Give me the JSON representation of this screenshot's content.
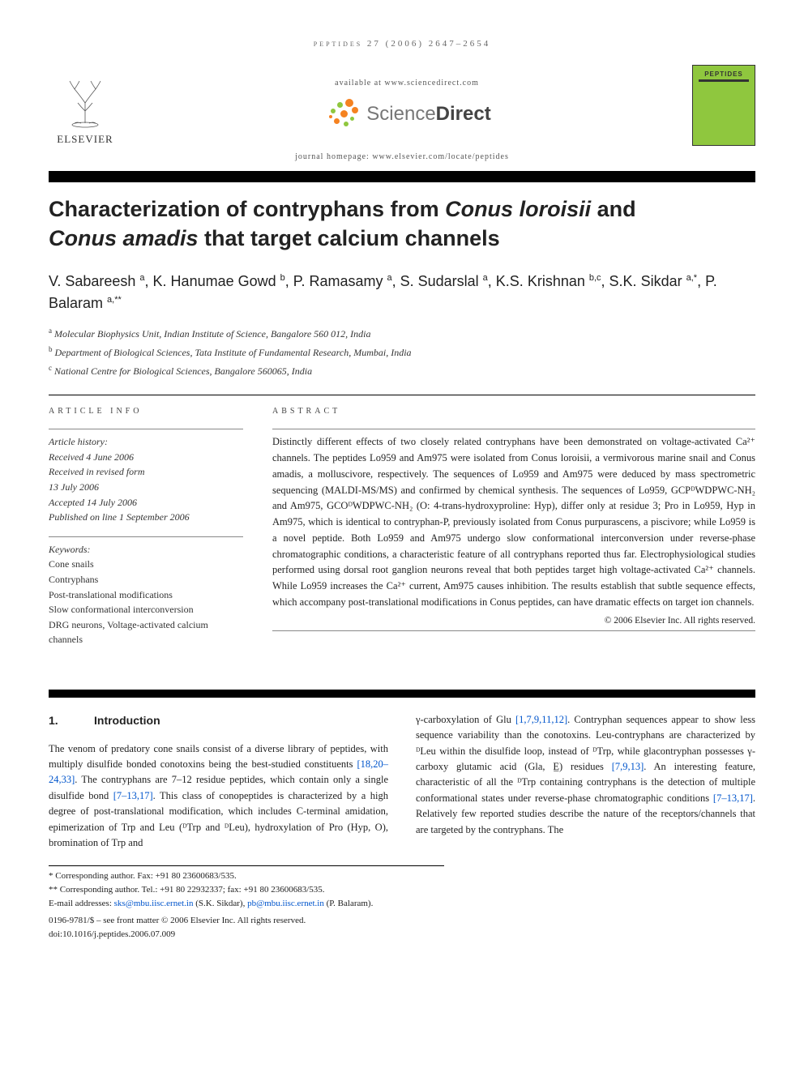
{
  "running_header": "peptides 27 (2006) 2647–2654",
  "banner": {
    "available_at": "available at www.sciencedirect.com",
    "sciencedirect": "ScienceDirect",
    "elsevier": "ELSEVIER",
    "journal_cover_name": "PEPTIDES",
    "homepage": "journal homepage: www.elsevier.com/locate/peptides"
  },
  "title_line1": "Characterization of contryphans from ",
  "title_em1": "Conus loroisii",
  "title_mid": " and ",
  "title_em2": "Conus amadis",
  "title_line2": " that target calcium channels",
  "authors_html": "V. Sabareesh <sup>a</sup>, K. Hanumae Gowd <sup>b</sup>, P. Ramasamy <sup>a</sup>, S. Sudarslal <sup>a</sup>, K.S. Krishnan <sup>b,c</sup>, S.K. Sikdar <sup>a,*</sup>, P. Balaram <sup>a,**</sup>",
  "affil": {
    "a": "Molecular Biophysics Unit, Indian Institute of Science, Bangalore 560 012, India",
    "b": "Department of Biological Sciences, Tata Institute of Fundamental Research, Mumbai, India",
    "c": "National Centre for Biological Sciences, Bangalore 560065, India"
  },
  "labels": {
    "article_info": "ARTICLE INFO",
    "abstract": "ABSTRACT",
    "history_hdr": "Article history:",
    "keywords_hdr": "Keywords:"
  },
  "history": {
    "l1": "Received 4 June 2006",
    "l2": "Received in revised form",
    "l3": "13 July 2006",
    "l4": "Accepted 14 July 2006",
    "l5": "Published on line 1 September 2006"
  },
  "keywords": [
    "Cone snails",
    "Contryphans",
    "Post-translational modifications",
    "Slow conformational interconversion",
    "DRG neurons, Voltage-activated calcium channels"
  ],
  "abstract": "Distinctly different effects of two closely related contryphans have been demonstrated on voltage-activated Ca²⁺ channels. The peptides Lo959 and Am975 were isolated from Conus loroisii, a vermivorous marine snail and Conus amadis, a molluscivore, respectively. The sequences of Lo959 and Am975 were deduced by mass spectrometric sequencing (MALDI-MS/MS) and confirmed by chemical synthesis. The sequences of Lo959, GCPᴰWDPWC-NH₂ and Am975, GCOᴰWDPWC-NH₂ (O: 4-trans-hydroxyproline: Hyp), differ only at residue 3; Pro in Lo959, Hyp in Am975, which is identical to contryphan-P, previously isolated from Conus purpurascens, a piscivore; while Lo959 is a novel peptide. Both Lo959 and Am975 undergo slow conformational interconversion under reverse-phase chromatographic conditions, a characteristic feature of all contryphans reported thus far. Electrophysiological studies performed using dorsal root ganglion neurons reveal that both peptides target high voltage-activated Ca²⁺ channels. While Lo959 increases the Ca²⁺ current, Am975 causes inhibition. The results establish that subtle sequence effects, which accompany post-translational modifications in Conus peptides, can have dramatic effects on target ion channels.",
  "copyright": "© 2006 Elsevier Inc. All rights reserved.",
  "section1": {
    "num": "1.",
    "title": "Introduction"
  },
  "body_left": "The venom of predatory cone snails consist of a diverse library of peptides, with multiply disulfide bonded conotoxins being the best-studied constituents [18,20–24,33]. The contryphans are 7–12 residue peptides, which contain only a single disulfide bond [7–13,17]. This class of conopeptides is characterized by a high degree of post-translational modification, which includes C-terminal amidation, epimerization of Trp and Leu (ᴰTrp and ᴰLeu), hydroxylation of Pro (Hyp, O), bromination of Trp and",
  "body_right": "γ-carboxylation of Glu [1,7,9,11,12]. Contryphan sequences appear to show less sequence variability than the conotoxins. Leu-contryphans are characterized by ᴰLeu within the disulfide loop, instead of ᴰTrp, while glacontryphan possesses γ-carboxy glutamic acid (Gla, E̲) residues [7,9,13]. An interesting feature, characteristic of all the ᴰTrp containing contryphans is the detection of multiple conformational states under reverse-phase chromatographic conditions [7–13,17]. Relatively few reported studies describe the nature of the receptors/channels that are targeted by the contryphans. The",
  "footnotes": {
    "l1": "* Corresponding author. Fax: +91 80 23600683/535.",
    "l2": "** Corresponding author. Tel.: +91 80 22932337; fax: +91 80 23600683/535.",
    "l3_pre": "E-mail addresses: ",
    "email1": "sks@mbu.iisc.ernet.in",
    "email1_post": " (S.K. Sikdar), ",
    "email2": "pb@mbu.iisc.ernet.in",
    "email2_post": " (P. Balaram)."
  },
  "footer": {
    "l1": "0196-9781/$ – see front matter © 2006 Elsevier Inc. All rights reserved.",
    "l2": "doi:10.1016/j.peptides.2006.07.009"
  },
  "colors": {
    "sd_orange": "#f58220",
    "sd_green": "#8fc73e",
    "cite": "#0055cc",
    "cover_bg": "#8fc73e"
  }
}
